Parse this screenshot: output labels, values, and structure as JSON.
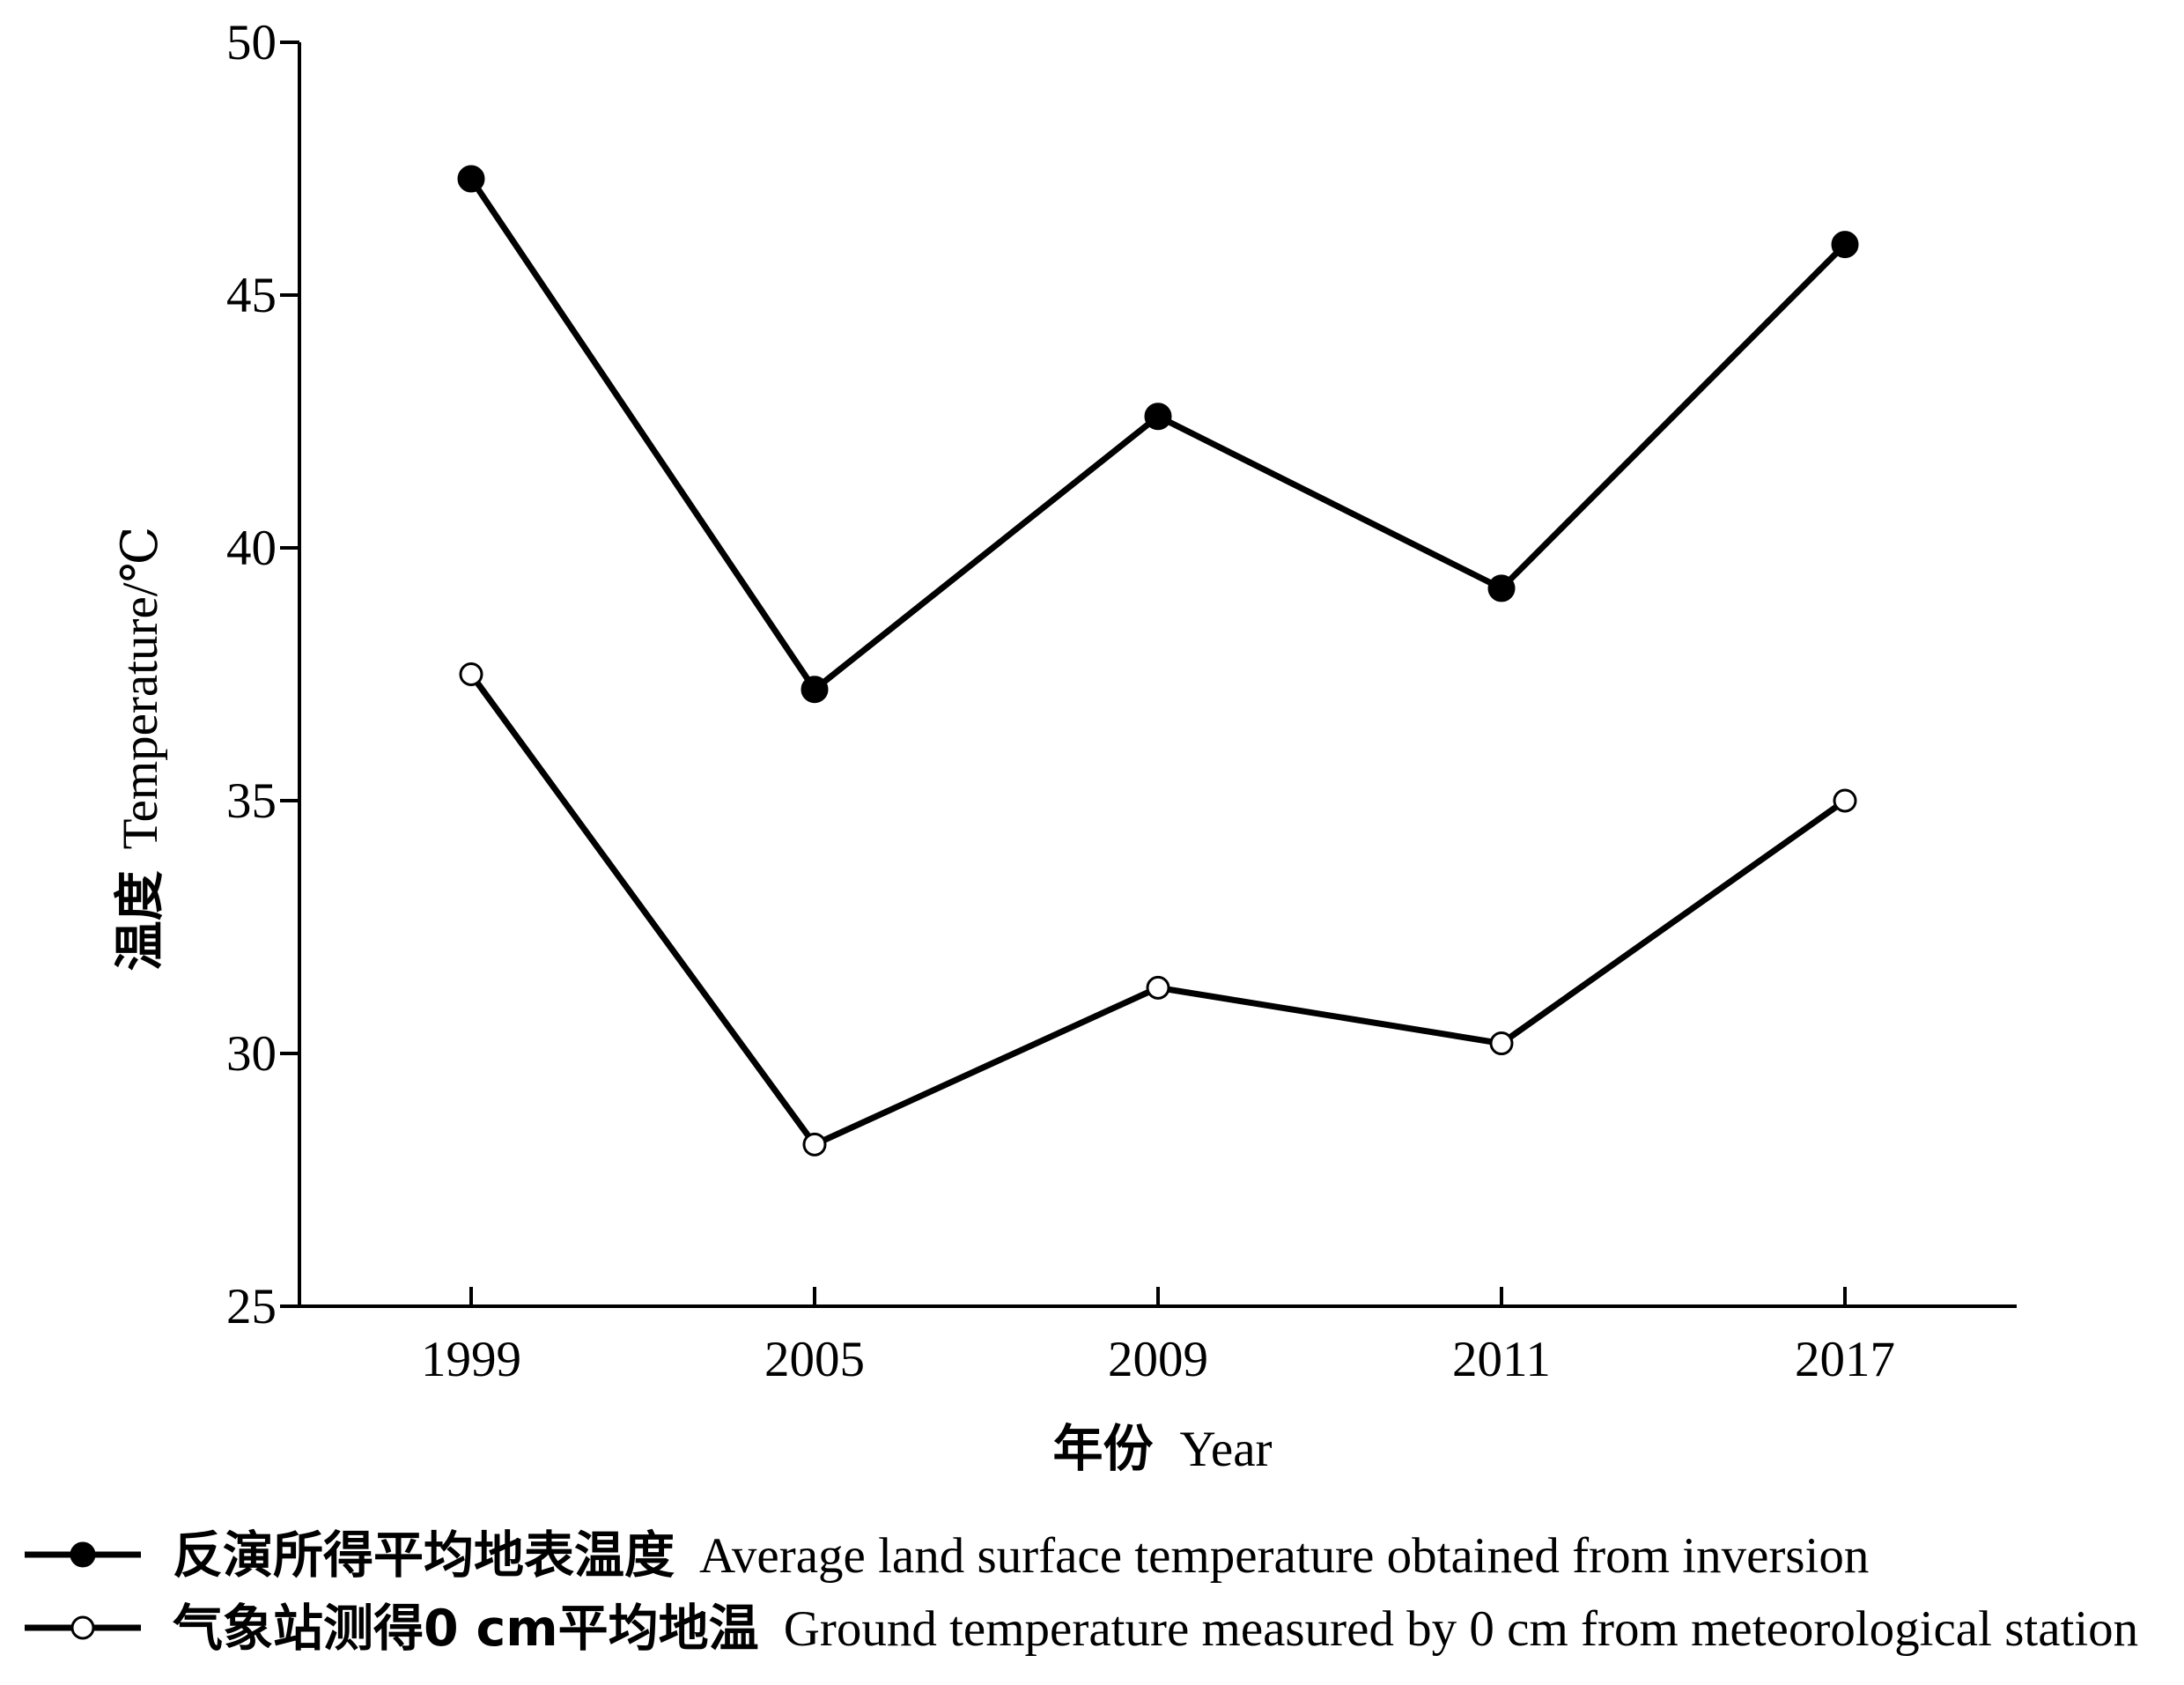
{
  "chart_data": {
    "type": "line",
    "xlabel": {
      "zh": "年份",
      "en": "Year"
    },
    "ylabel": {
      "zh": "温度",
      "en": "Temperature/℃"
    },
    "ylim": [
      25,
      50
    ],
    "yticks": [
      25,
      30,
      35,
      40,
      45,
      50
    ],
    "categories": [
      "1999",
      "2005",
      "2009",
      "2011",
      "2017"
    ],
    "grid": false,
    "legend_position": "bottom",
    "series": [
      {
        "name_zh": "反演所得平均地表温度",
        "name_en": "Average land surface temperature obtained from inversion",
        "marker": "filled-circle",
        "color": "#000000",
        "values": [
          47.3,
          37.2,
          42.6,
          39.2,
          46.0
        ]
      },
      {
        "name_zh": "气象站测得0 cm平均地温",
        "name_en": "Ground temperature measured by 0 cm from meteorological station",
        "marker": "open-circle",
        "color": "#000000",
        "values": [
          37.5,
          28.2,
          31.3,
          30.2,
          35.0
        ]
      }
    ]
  }
}
